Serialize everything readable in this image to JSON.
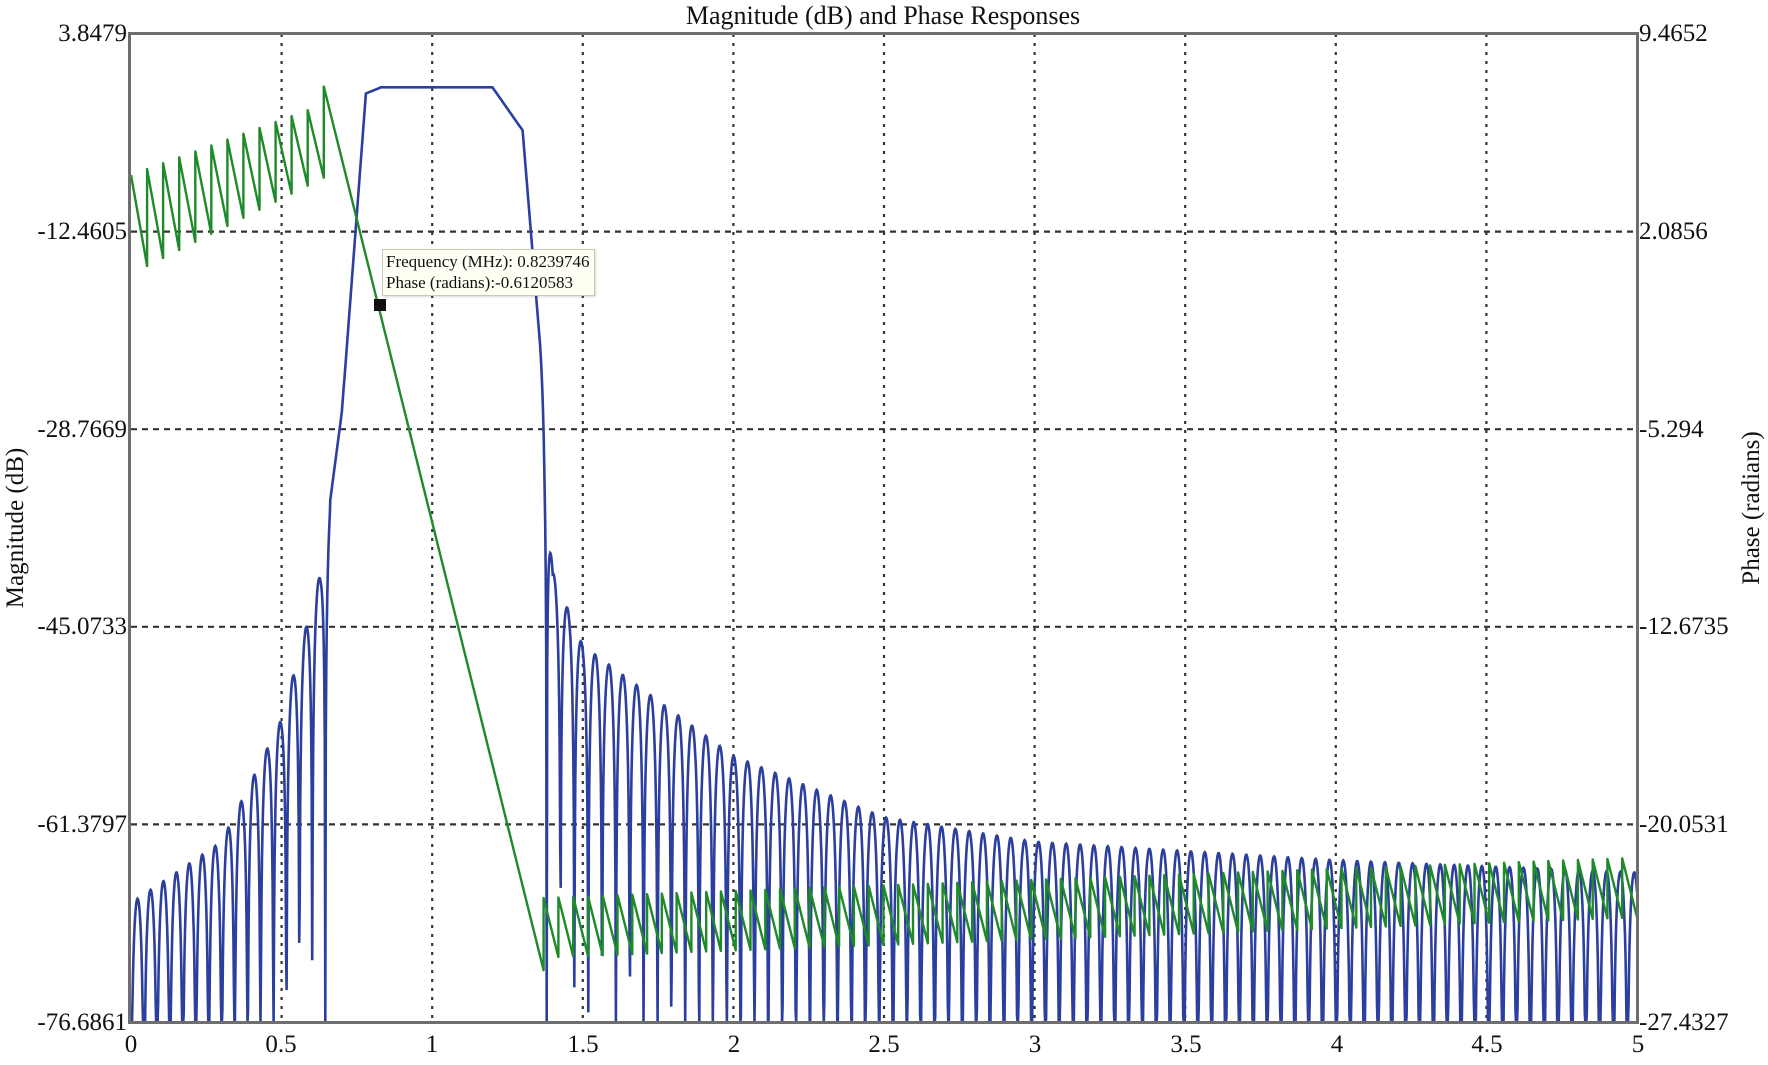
{
  "chart_data": {
    "type": "line",
    "title": "Magnitude (dB) and Phase Responses",
    "xlabel": "",
    "ylabel_left": "Magnitude (dB)",
    "ylabel_right": "Phase (radians)",
    "xlim": [
      0,
      5
    ],
    "ylim_left": [
      -76.6861,
      3.8479
    ],
    "ylim_right": [
      -27.4327,
      9.4652
    ],
    "x_ticks": [
      "0",
      "0.5",
      "1",
      "1.5",
      "2",
      "2.5",
      "3",
      "3.5",
      "4",
      "4.5",
      "5"
    ],
    "y_ticks_left": [
      "3.8479",
      "-12.4605",
      "-28.7669",
      "-45.0733",
      "-61.3797",
      "-76.6861"
    ],
    "y_ticks_right": [
      "9.4652",
      "2.0856",
      "-5.294",
      "-12.6735",
      "-20.0531",
      "-27.4327"
    ],
    "grid": true,
    "legend": null,
    "series": [
      {
        "name": "Magnitude (dB)",
        "axis": "left",
        "color": "#2c3f9e",
        "description": "Bandpass response: passband ~0.68-1.33 MHz at ~-0.5 dB; sidelobes rise from ~-68 dB at 0 to ~-40 dB near 0.64 MHz; stopband sidelobes decay from ~-40 dB at 1.38 MHz to ~-64 dB at 5 MHz",
        "keypoints": [
          {
            "x": 0.0,
            "y": -67.0
          },
          {
            "x": 0.3,
            "y": -62.0
          },
          {
            "x": 0.5,
            "y": -52.0
          },
          {
            "x": 0.63,
            "y": -40.0
          },
          {
            "x": 0.7,
            "y": -27.0
          },
          {
            "x": 0.78,
            "y": -1.0
          },
          {
            "x": 0.83,
            "y": -0.5
          },
          {
            "x": 1.0,
            "y": -0.5
          },
          {
            "x": 1.2,
            "y": -0.5
          },
          {
            "x": 1.3,
            "y": -4.0
          },
          {
            "x": 1.37,
            "y": -25.0
          },
          {
            "x": 1.4,
            "y": -40.0
          },
          {
            "x": 1.5,
            "y": -46.0
          },
          {
            "x": 2.0,
            "y": -55.0
          },
          {
            "x": 2.5,
            "y": -60.0
          },
          {
            "x": 3.0,
            "y": -62.0
          },
          {
            "x": 4.0,
            "y": -63.5
          },
          {
            "x": 5.0,
            "y": -64.5
          }
        ]
      },
      {
        "name": "Phase (radians)",
        "axis": "right",
        "color": "#1f8a2a",
        "description": "Wrapped sawtooth phase ~1.5-5.5 rad below 0.64 MHz, linear descent in passband from ~7.5 rad at 0.64 MHz to ~-25.5 rad at 1.37 MHz, then sawtooth between ~-24 and ~-21 rad",
        "keypoints": [
          {
            "x": 0.0,
            "y": 2.5
          },
          {
            "x": 0.64,
            "y": 7.5
          },
          {
            "x": 0.8239746,
            "y": -0.6120583
          },
          {
            "x": 1.37,
            "y": -25.5
          },
          {
            "x": 1.5,
            "y": -22.5
          },
          {
            "x": 3.0,
            "y": -22.0
          },
          {
            "x": 5.0,
            "y": -21.5
          }
        ]
      }
    ],
    "annotations": [
      {
        "type": "datatip",
        "x": 0.8239746,
        "y": -0.6120583,
        "lines": [
          "Frequency (MHz): 0.8239746",
          "Phase (radians):-0.6120583"
        ]
      }
    ]
  },
  "datatip": {
    "line1": "Frequency (MHz): 0.8239746",
    "line2": "Phase (radians):-0.6120583"
  },
  "colors": {
    "magnitude": "#2c3f9e",
    "phase": "#1f8a2a",
    "grid": "#333333",
    "axis": "#6e6e6e"
  }
}
